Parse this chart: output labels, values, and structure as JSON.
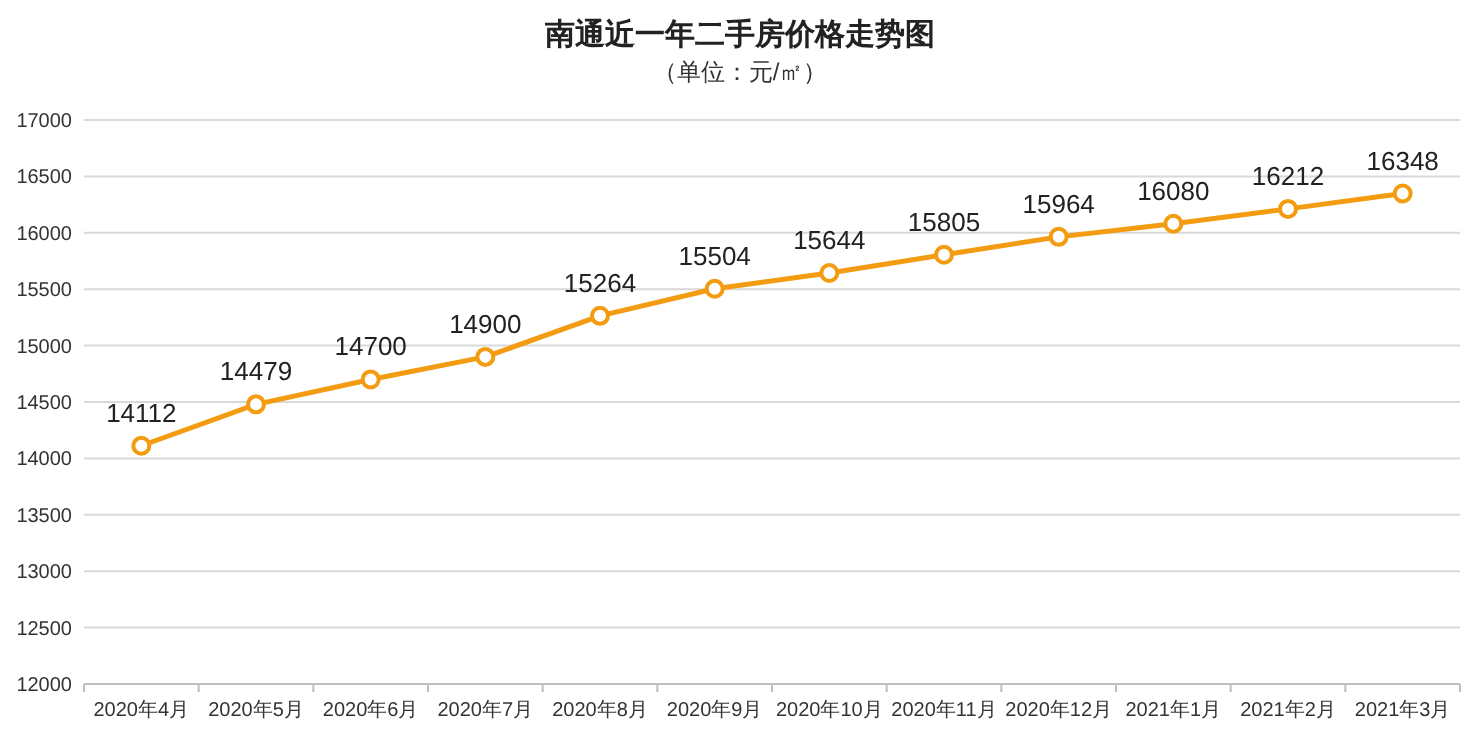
{
  "chart_data": {
    "type": "line",
    "title": "南通近一年二手房价格走势图",
    "subtitle": "（单位：元/㎡）",
    "categories": [
      "2020年4月",
      "2020年5月",
      "2020年6月",
      "2020年7月",
      "2020年8月",
      "2020年9月",
      "2020年10月",
      "2020年11月",
      "2020年12月",
      "2021年1月",
      "2021年2月",
      "2021年3月"
    ],
    "series": [
      {
        "color": "#f39c12",
        "values": [
          14112,
          14479,
          14700,
          14900,
          15264,
          15504,
          15644,
          15805,
          15964,
          16080,
          16212,
          16348
        ]
      }
    ],
    "ylim": [
      12000,
      17000
    ],
    "yticks": [
      12000,
      12500,
      13000,
      13500,
      14000,
      14500,
      15000,
      15500,
      16000,
      16500,
      17000
    ],
    "grid": "y",
    "marker": "circle",
    "line_style": "solid",
    "data_labels": true
  }
}
